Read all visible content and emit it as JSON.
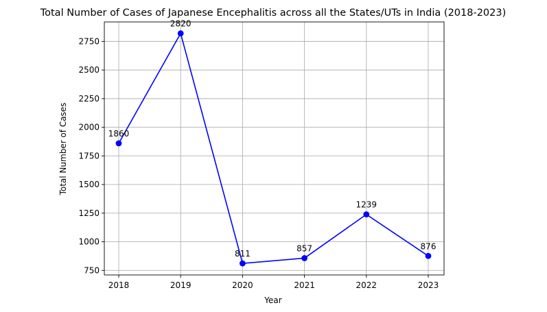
{
  "chart_data": {
    "type": "line",
    "title": "Total Number of Cases of Japanese Encephalitis across all the States/UTs in India (2018-2023)",
    "xlabel": "Year",
    "ylabel": "Total Number of Cases",
    "categories": [
      "2018",
      "2019",
      "2020",
      "2021",
      "2022",
      "2023"
    ],
    "series": [
      {
        "values": [
          1860,
          2820,
          811,
          857,
          1239,
          876
        ],
        "color": "#0000ff",
        "marker": "circle"
      }
    ],
    "data_labels": [
      "1860",
      "2820",
      "811",
      "857",
      "1239",
      "876"
    ],
    "yticks": [
      750,
      1000,
      1250,
      1500,
      1750,
      2000,
      2250,
      2500,
      2750
    ],
    "ytick_labels": [
      "750",
      "1000",
      "1250",
      "1500",
      "1750",
      "2000",
      "2250",
      "2500",
      "2750"
    ],
    "ylim": [
      710,
      2920
    ],
    "grid": true
  }
}
